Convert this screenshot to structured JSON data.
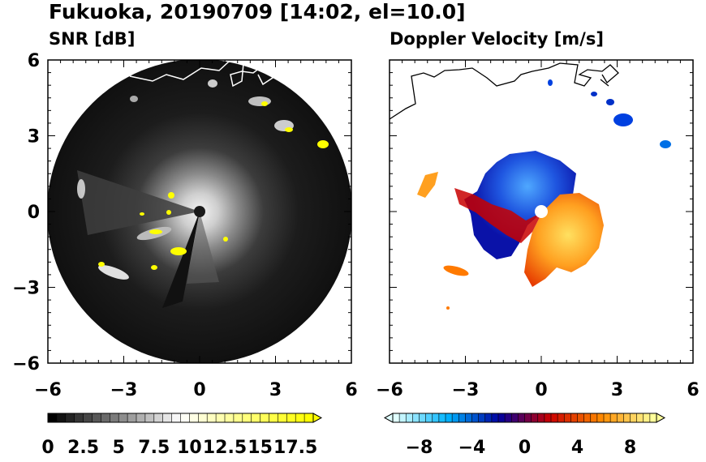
{
  "title": "Fukuoka, 20190709 [14:02, el=10.0]",
  "chart_data": [
    {
      "type": "heatmap",
      "title": "SNR [dB]",
      "xlim": [
        -6,
        6
      ],
      "ylim": [
        -6,
        6
      ],
      "x_ticks": [
        -6,
        -3,
        0,
        3,
        6
      ],
      "y_ticks": [
        6,
        3,
        0,
        -3,
        -6
      ],
      "x_tick_labels": [
        "−6",
        "−3",
        "0",
        "3",
        "6"
      ],
      "y_tick_labels": [
        "6",
        "3",
        "0",
        "−3",
        "−6"
      ],
      "colorbar": {
        "min": 0,
        "max": 18.75,
        "step": 0.625,
        "extend": "max",
        "labels": [
          "0",
          "2.5",
          "5",
          "7.5",
          "10",
          "12.5",
          "15",
          "17.5"
        ],
        "label_values": [
          0,
          2.5,
          5,
          7.5,
          10,
          12.5,
          15,
          17.5
        ],
        "colors": [
          "#000000",
          "#ffffff",
          "#ffff00"
        ]
      }
    },
    {
      "type": "heatmap",
      "title": "Doppler Velocity [m/s]",
      "xlim": [
        -6,
        6
      ],
      "ylim": [
        -6,
        6
      ],
      "x_ticks": [
        -6,
        -3,
        0,
        3,
        6
      ],
      "y_ticks": [
        6,
        3,
        0,
        -3,
        -6
      ],
      "x_tick_labels": [
        "−6",
        "−3",
        "0",
        "3",
        "6"
      ],
      "y_tick_labels": [],
      "colorbar": {
        "min": -10,
        "max": 10,
        "step": 0.5,
        "extend": "both",
        "labels": [
          "−8",
          "−4",
          "0",
          "4",
          "8"
        ],
        "label_values": [
          -8,
          -4,
          0,
          4,
          8
        ],
        "colors": [
          "#e0ffff",
          "#00b4ff",
          "#0000a0",
          "#cc0000",
          "#ff8c00",
          "#ffff9a"
        ]
      }
    }
  ]
}
